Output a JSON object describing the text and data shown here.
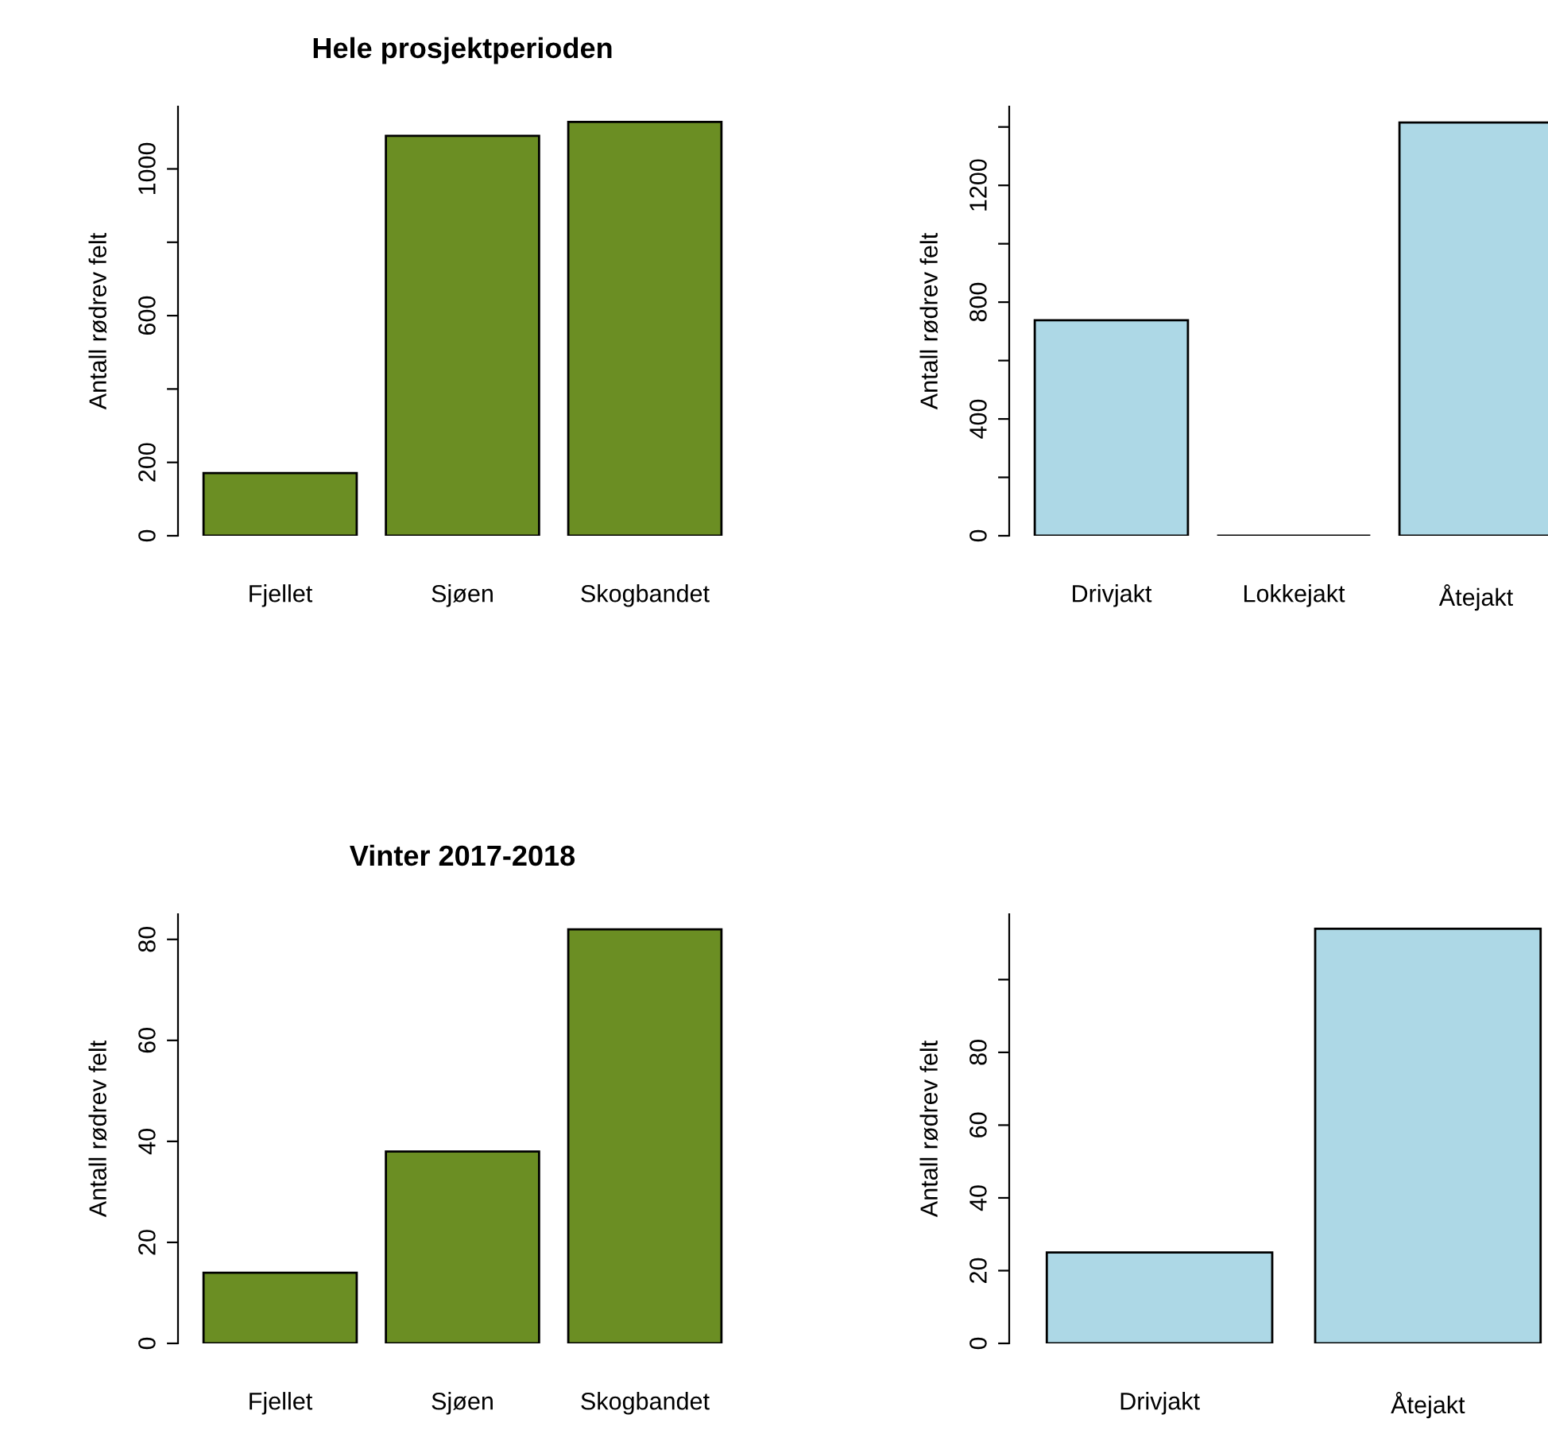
{
  "chart_data": [
    {
      "type": "bar",
      "title": "Hele prosjektperioden",
      "ylabel": "Antall rødrev felt",
      "categories": [
        "Fjellet",
        "Sjøen",
        "Skogbandet"
      ],
      "values": [
        171,
        1090,
        1128
      ],
      "color": "#6b8e23",
      "ylim": [
        0,
        1170
      ],
      "yticks": [
        0,
        200,
        {
          "value": 400,
          "label": null
        },
        600,
        {
          "value": 800,
          "label": null
        },
        1000
      ],
      "grid": false,
      "legend": false
    },
    {
      "type": "bar",
      "ylabel": "Antall rødrev felt",
      "categories": [
        "Drivjakt",
        "Lokkejakt",
        "Åtejakt"
      ],
      "values": [
        738,
        0,
        1415
      ],
      "color": "#add8e6",
      "ylim": [
        0,
        1470
      ],
      "yticks": [
        0,
        {
          "value": 200,
          "label": null
        },
        400,
        {
          "value": 600,
          "label": null
        },
        800,
        {
          "value": 1000,
          "label": null
        },
        1200,
        {
          "value": 1400,
          "label": null
        }
      ],
      "grid": false,
      "legend": false
    },
    {
      "type": "bar",
      "title": "Vinter 2017-2018",
      "ylabel": "Antall rødrev felt",
      "categories": [
        "Fjellet",
        "Sjøen",
        "Skogbandet"
      ],
      "values": [
        14,
        38,
        82
      ],
      "color": "#6b8e23",
      "ylim": [
        0,
        85
      ],
      "yticks": [
        0,
        20,
        40,
        60,
        80
      ],
      "grid": false,
      "legend": false
    },
    {
      "type": "bar",
      "ylabel": "Antall rødrev felt",
      "categories": [
        "Drivjakt",
        "Åtejakt"
      ],
      "values": [
        25,
        114
      ],
      "color": "#add8e6",
      "ylim": [
        0,
        118
      ],
      "yticks": [
        0,
        20,
        40,
        60,
        80,
        {
          "value": 100,
          "label": null
        }
      ],
      "grid": false,
      "legend": false
    }
  ]
}
